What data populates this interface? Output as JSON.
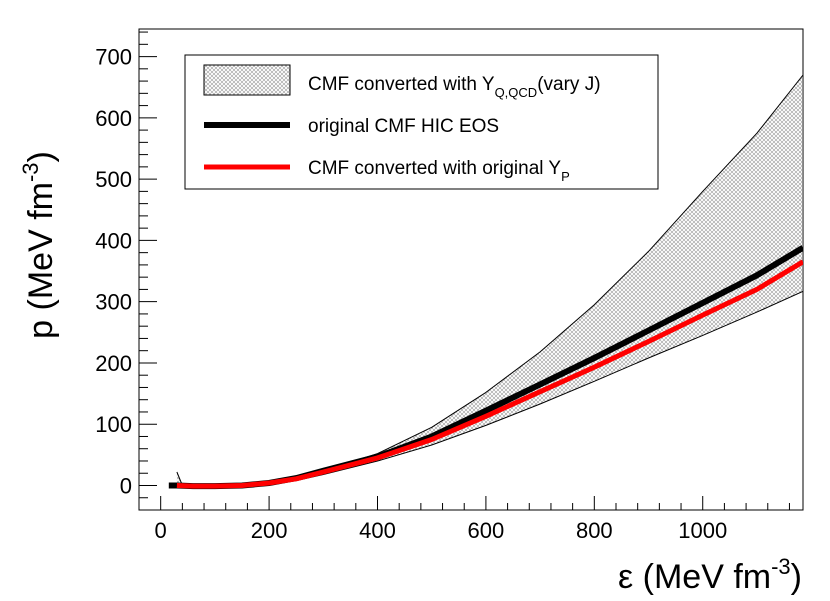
{
  "chart_data": {
    "type": "line",
    "title": "",
    "xlabel": {
      "main": "ε (MeV fm",
      "sup": "-3",
      "tail": ")"
    },
    "ylabel": {
      "main": "p (MeV fm",
      "sup": "-3",
      "tail": ")"
    },
    "xlim": [
      -40,
      1185
    ],
    "ylim": [
      -40,
      745
    ],
    "x_ticks": [
      0,
      200,
      400,
      600,
      800,
      1000
    ],
    "y_ticks": [
      0,
      100,
      200,
      300,
      400,
      500,
      600,
      700
    ],
    "x_minor_step": 40,
    "y_minor_step": 20,
    "grid": false,
    "legend": {
      "placement": "top-left",
      "entries": [
        {
          "id": "band",
          "style": "hatched-band",
          "text": "CMF converted with Y",
          "sub": "Q,QCD",
          "after": "(vary J)"
        },
        {
          "id": "black",
          "style": "line",
          "color": "#000000",
          "text": "original CMF HIC EOS",
          "sub": "",
          "after": ""
        },
        {
          "id": "red",
          "style": "line",
          "color": "#ff0000",
          "text": "CMF converted with original Y",
          "sub": "P",
          "after": ""
        }
      ]
    },
    "series": [
      {
        "name": "CMF converted with Y_Q,QCD (vary J) upper bound",
        "role": "band-upper",
        "color": "#000000",
        "x": [
          30,
          40,
          60,
          100,
          150,
          200,
          250,
          300,
          400,
          500,
          600,
          700,
          800,
          900,
          1000,
          1100,
          1185
        ],
        "y": [
          22,
          0,
          -2,
          -2,
          0,
          4,
          12,
          24,
          52,
          95,
          152,
          218,
          295,
          382,
          480,
          575,
          670
        ]
      },
      {
        "name": "CMF converted with Y_Q,QCD (vary J) lower bound",
        "role": "band-lower",
        "color": "#000000",
        "x": [
          30,
          40,
          60,
          100,
          150,
          200,
          250,
          300,
          400,
          500,
          600,
          700,
          800,
          900,
          1000,
          1100,
          1185
        ],
        "y": [
          0,
          -2,
          -2,
          -2,
          -1,
          2,
          8,
          18,
          40,
          66,
          98,
          133,
          170,
          208,
          245,
          283,
          317
        ]
      },
      {
        "name": "original CMF HIC EOS",
        "role": "line",
        "color": "#000000",
        "width": 6,
        "x": [
          15,
          30,
          60,
          100,
          150,
          200,
          250,
          300,
          400,
          500,
          600,
          700,
          800,
          900,
          1000,
          1100,
          1185
        ],
        "y": [
          0,
          0,
          -1,
          -1,
          0,
          4,
          12,
          24,
          47,
          80,
          122,
          165,
          208,
          253,
          298,
          343,
          388
        ]
      },
      {
        "name": "CMF converted with original Y_P",
        "role": "line",
        "color": "#ff0000",
        "width": 5,
        "x": [
          30,
          60,
          100,
          150,
          200,
          250,
          300,
          400,
          500,
          600,
          700,
          800,
          900,
          1000,
          1100,
          1185
        ],
        "y": [
          0,
          -1,
          -1,
          0,
          4,
          11,
          22,
          45,
          75,
          113,
          153,
          193,
          235,
          278,
          320,
          365
        ]
      }
    ]
  }
}
